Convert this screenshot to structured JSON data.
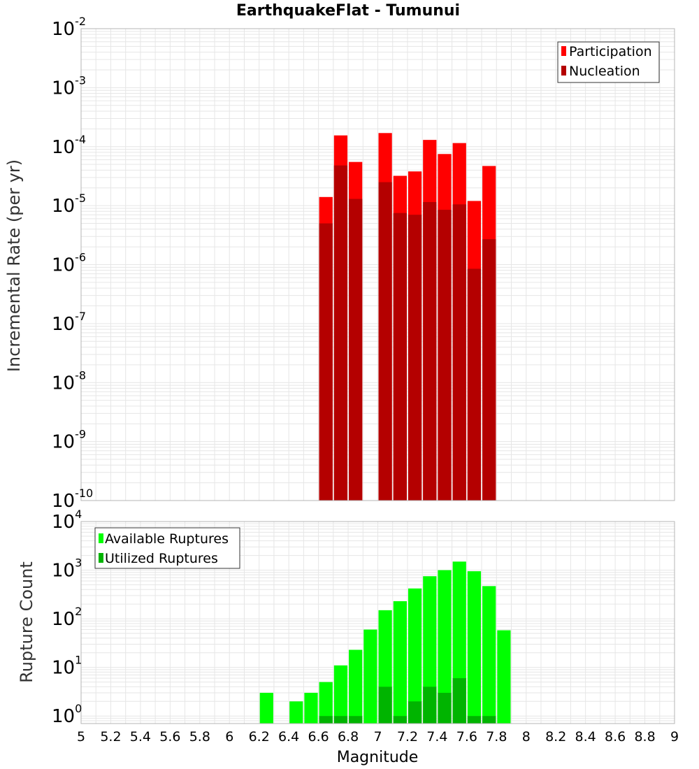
{
  "chart_data": [
    {
      "id": "rates",
      "type": "bar",
      "title": "EarthquakeFlat - Tumunui",
      "xlabel": "Magnitude",
      "ylabel": "Incremental Rate (per yr)",
      "yscale": "log",
      "ylim": [
        1e-10,
        0.01
      ],
      "xlim": [
        5,
        9
      ],
      "bin_width": 0.1,
      "yticks": [
        {
          "base": "10",
          "exp": "-10",
          "value": 1e-10
        },
        {
          "base": "10",
          "exp": "-9",
          "value": 1e-09
        },
        {
          "base": "10",
          "exp": "-8",
          "value": 1e-08
        },
        {
          "base": "10",
          "exp": "-7",
          "value": 1e-07
        },
        {
          "base": "10",
          "exp": "-6",
          "value": 1e-06
        },
        {
          "base": "10",
          "exp": "-5",
          "value": 1e-05
        },
        {
          "base": "10",
          "exp": "-4",
          "value": 0.0001
        },
        {
          "base": "10",
          "exp": "-3",
          "value": 0.001
        },
        {
          "base": "10",
          "exp": "-2",
          "value": 0.01
        }
      ],
      "legend_position": "top-right",
      "series": [
        {
          "name": "Participation",
          "color": "#ff0000",
          "x": [
            6.65,
            6.75,
            6.85,
            7.05,
            7.15,
            7.25,
            7.35,
            7.45,
            7.55,
            7.65,
            7.75
          ],
          "values": [
            1.4e-05,
            0.000155,
            5.5e-05,
            0.00017,
            3.2e-05,
            3.8e-05,
            0.00013,
            7.5e-05,
            0.000115,
            1.2e-05,
            4.7e-05
          ]
        },
        {
          "name": "Nucleation",
          "color": "#b40000",
          "x": [
            6.65,
            6.75,
            6.85,
            7.05,
            7.15,
            7.25,
            7.35,
            7.45,
            7.55,
            7.65,
            7.75
          ],
          "values": [
            5e-06,
            4.8e-05,
            1.3e-05,
            2.5e-05,
            7.5e-06,
            7e-06,
            1.15e-05,
            8.5e-06,
            1.05e-05,
            8.5e-07,
            2.7e-06
          ]
        }
      ]
    },
    {
      "id": "counts",
      "type": "bar",
      "title": "",
      "xlabel": "Magnitude",
      "ylabel": "Rupture Count",
      "yscale": "log",
      "ylim": [
        0.7,
        10000
      ],
      "xlim": [
        5,
        9
      ],
      "bin_width": 0.1,
      "yticks": [
        {
          "base": "10",
          "exp": "0",
          "value": 1
        },
        {
          "base": "10",
          "exp": "1",
          "value": 10
        },
        {
          "base": "10",
          "exp": "2",
          "value": 100
        },
        {
          "base": "10",
          "exp": "3",
          "value": 1000
        },
        {
          "base": "10",
          "exp": "4",
          "value": 10000
        }
      ],
      "xticks": [
        "5",
        "5.2",
        "5.4",
        "5.6",
        "5.8",
        "6",
        "6.2",
        "6.4",
        "6.6",
        "6.8",
        "7",
        "7.2",
        "7.4",
        "7.6",
        "7.8",
        "8",
        "8.2",
        "8.4",
        "8.6",
        "8.8",
        "9"
      ],
      "legend_position": "top-left",
      "series": [
        {
          "name": "Available Ruptures",
          "color": "#00ff00",
          "x": [
            6.25,
            6.45,
            6.55,
            6.65,
            6.75,
            6.85,
            6.95,
            7.05,
            7.15,
            7.25,
            7.35,
            7.45,
            7.55,
            7.65,
            7.75,
            7.85
          ],
          "values": [
            3,
            2,
            3,
            5,
            11,
            23,
            60,
            150,
            230,
            420,
            750,
            1000,
            1500,
            950,
            470,
            58
          ]
        },
        {
          "name": "Utilized Ruptures",
          "color": "#00b400",
          "x": [
            6.65,
            6.75,
            6.85,
            7.05,
            7.15,
            7.25,
            7.35,
            7.45,
            7.55,
            7.65,
            7.75
          ],
          "values": [
            1,
            1,
            1,
            4,
            1,
            2,
            4,
            3,
            6,
            1,
            1
          ]
        }
      ]
    }
  ]
}
